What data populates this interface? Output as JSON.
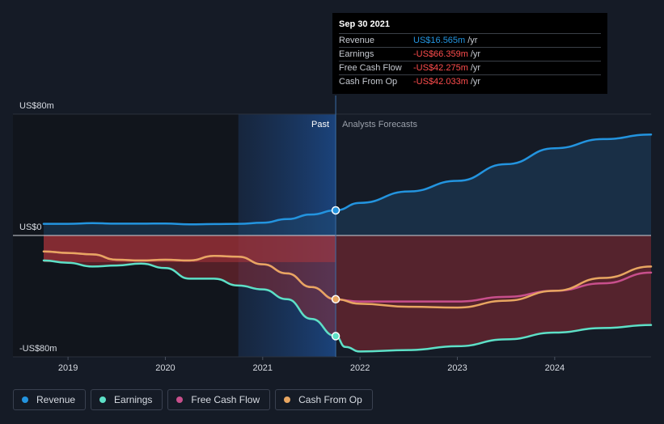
{
  "tooltip": {
    "date": "Sep 30 2021",
    "rows": [
      {
        "label": "Revenue",
        "value": "US$16.565m",
        "unit": "/yr",
        "color": "#2394df"
      },
      {
        "label": "Earnings",
        "value": "-US$66.359m",
        "unit": "/yr",
        "color": "#ff4d4d"
      },
      {
        "label": "Free Cash Flow",
        "value": "-US$42.275m",
        "unit": "/yr",
        "color": "#ff4d4d"
      },
      {
        "label": "Cash From Op",
        "value": "-US$42.033m",
        "unit": "/yr",
        "color": "#ff4d4d"
      }
    ]
  },
  "section_labels": {
    "past": "Past",
    "forecast": "Analysts Forecasts"
  },
  "legend": [
    {
      "label": "Revenue",
      "color": "#2394df"
    },
    {
      "label": "Earnings",
      "color": "#5de0c7"
    },
    {
      "label": "Free Cash Flow",
      "color": "#c84f8c"
    },
    {
      "label": "Cash From Op",
      "color": "#e8a661"
    }
  ],
  "chart_data": {
    "type": "line",
    "y_tick_labels": [
      "US$80m",
      "US$0",
      "-US$80m"
    ],
    "y_ticks": [
      80,
      0,
      -80
    ],
    "ylim": [
      -80,
      80
    ],
    "xlim": [
      2018.7,
      2024.99
    ],
    "x_tick_labels": [
      "2019",
      "2020",
      "2021",
      "2022",
      "2023",
      "2024"
    ],
    "x_ticks": [
      2019,
      2020,
      2021,
      2022,
      2023,
      2024
    ],
    "past_end": 2021.75,
    "highlight_start": 2020.75,
    "series": [
      {
        "name": "Revenue",
        "color": "#2394df",
        "x": [
          2018.75,
          2019.0,
          2019.25,
          2019.5,
          2019.75,
          2020.0,
          2020.25,
          2020.5,
          2020.75,
          2021.0,
          2021.25,
          2021.5,
          2021.75,
          2022.0,
          2022.5,
          2023.0,
          2023.5,
          2024.0,
          2024.5,
          2024.99
        ],
        "y": [
          7.7,
          7.7,
          8.1,
          7.8,
          7.8,
          7.9,
          7.3,
          7.5,
          7.7,
          8.4,
          10.8,
          13.8,
          16.565,
          21.5,
          29.0,
          36.0,
          47.0,
          57.5,
          63.5,
          66.5
        ]
      },
      {
        "name": "Earnings",
        "color": "#5de0c7",
        "x": [
          2018.75,
          2019.0,
          2019.25,
          2019.5,
          2019.75,
          2020.0,
          2020.25,
          2020.5,
          2020.75,
          2021.0,
          2021.25,
          2021.5,
          2021.75,
          2021.85,
          2022.0,
          2022.5,
          2023.0,
          2023.5,
          2024.0,
          2024.5,
          2024.99
        ],
        "y": [
          -16.5,
          -18.0,
          -20.5,
          -19.8,
          -18.5,
          -21.5,
          -28.5,
          -28.5,
          -33.0,
          -35.5,
          -42.0,
          -55.0,
          -66.359,
          -73.5,
          -76.5,
          -75.5,
          -73.0,
          -68.5,
          -64.0,
          -61.0,
          -59.0
        ]
      },
      {
        "name": "Free Cash Flow",
        "color": "#c84f8c",
        "x": [
          2018.75,
          2019.0,
          2019.25,
          2019.5,
          2019.75,
          2020.0,
          2020.25,
          2020.5,
          2020.75,
          2021.0,
          2021.25,
          2021.5,
          2021.75,
          2022.0,
          2022.5,
          2023.0,
          2023.5,
          2024.0,
          2024.5,
          2024.99
        ],
        "y": [
          -10.5,
          -11.5,
          -12.5,
          -16.0,
          -16.5,
          -16.0,
          -16.5,
          -13.5,
          -14.0,
          -19.0,
          -25.0,
          -34.0,
          -42.275,
          -43.5,
          -43.5,
          -43.5,
          -40.5,
          -36.5,
          -31.5,
          -24.5
        ]
      },
      {
        "name": "Cash From Op",
        "color": "#e8a661",
        "x": [
          2018.75,
          2019.0,
          2019.25,
          2019.5,
          2019.75,
          2020.0,
          2020.25,
          2020.5,
          2020.75,
          2021.0,
          2021.25,
          2021.5,
          2021.75,
          2022.0,
          2022.5,
          2023.0,
          2023.5,
          2024.0,
          2024.5,
          2024.99
        ],
        "y": [
          -10.5,
          -11.5,
          -12.5,
          -16.0,
          -16.5,
          -16.0,
          -16.5,
          -13.5,
          -14.0,
          -19.0,
          -25.0,
          -34.0,
          -42.033,
          -45.0,
          -47.0,
          -47.5,
          -43.0,
          -36.5,
          -28.0,
          -20.5
        ]
      }
    ],
    "markers": [
      {
        "series": "Revenue",
        "x": 2021.75,
        "y": 16.565
      },
      {
        "series": "Earnings",
        "x": 2021.75,
        "y": -66.359
      },
      {
        "series": "Cash From Op",
        "x": 2021.75,
        "y": -42.033
      }
    ]
  }
}
